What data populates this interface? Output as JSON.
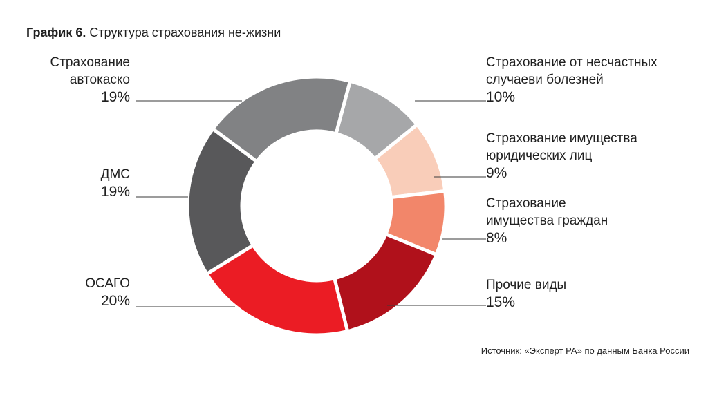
{
  "chart_data": {
    "type": "pie",
    "donut": true,
    "title_prefix": "График 6.",
    "title": "Структура страхования не-жизни",
    "source": "Источник: «Эксперт РА» по данным Банка России",
    "slices": [
      {
        "label_lines": [
          "Страхование от несчастных",
          "случаеви болезней"
        ],
        "value": 10,
        "value_label": "10%",
        "color": "#a6a7a9",
        "side": "right"
      },
      {
        "label_lines": [
          "Страхование имущества",
          "юридических лиц"
        ],
        "value": 9,
        "value_label": "9%",
        "color": "#f9cdb9",
        "side": "right"
      },
      {
        "label_lines": [
          "Страхование",
          "имущества граждан"
        ],
        "value": 8,
        "value_label": "8%",
        "color": "#f2866a",
        "side": "right"
      },
      {
        "label_lines": [
          "Прочие виды"
        ],
        "value": 15,
        "value_label": "15%",
        "color": "#b0111b",
        "side": "right"
      },
      {
        "label_lines": [
          "ОСАГО"
        ],
        "value": 20,
        "value_label": "20%",
        "color": "#eb1c24",
        "side": "left"
      },
      {
        "label_lines": [
          "ДМС"
        ],
        "value": 19,
        "value_label": "19%",
        "color": "#58585a",
        "side": "left"
      },
      {
        "label_lines": [
          "Страхование",
          "автокаско"
        ],
        "value": 19,
        "value_label": "19%",
        "color": "#818284",
        "side": "left"
      }
    ]
  }
}
